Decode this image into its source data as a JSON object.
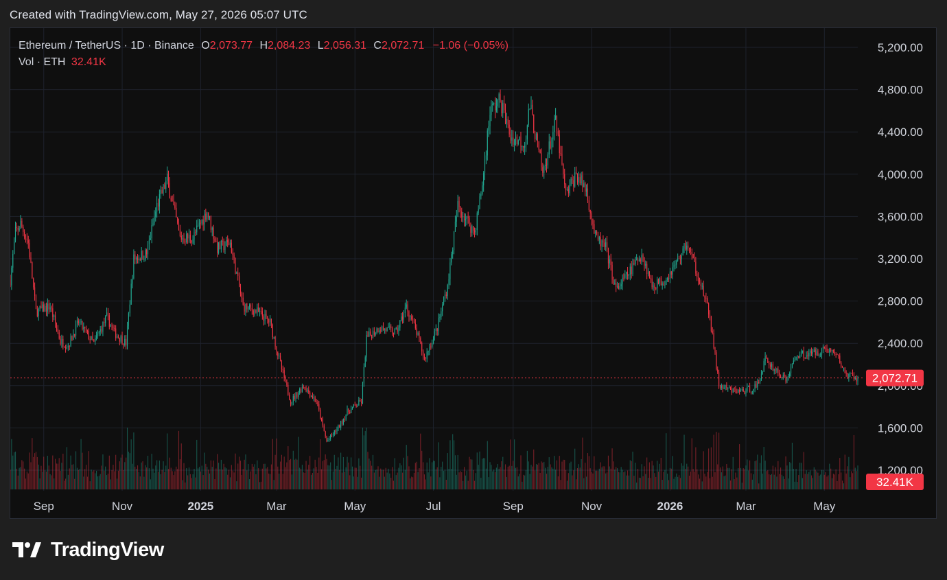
{
  "header": {
    "created_text": "Created with TradingView.com, May 27, 2026 05:07 UTC"
  },
  "legend": {
    "symbol": "Ethereum / TetherUS · 1D · Binance",
    "o_label": "O",
    "o_value": "2,073.77",
    "h_label": "H",
    "h_value": "2,084.23",
    "l_label": "L",
    "l_value": "2,056.31",
    "c_label": "C",
    "c_value": "2,072.71",
    "change": "−1.06 (−0.05%)",
    "vol_label": "Vol · ETH",
    "vol_value": "32.41K"
  },
  "colors": {
    "up": "#22ab94",
    "down": "#f23645",
    "grid": "#1e222d",
    "axis_text": "#d1d4dc"
  },
  "footer": {
    "logo_text": "TradingView",
    "logo_icon": "tradingview-logo-icon"
  },
  "chart_data": {
    "type": "candlestick",
    "interval": "1D",
    "price_axis": {
      "ticks": [
        "5,200.00",
        "4,800.00",
        "4,400.00",
        "4,000.00",
        "3,600.00",
        "3,200.00",
        "2,800.00",
        "2,400.00",
        "2,000.00",
        "1,600.00",
        "1,200.00"
      ],
      "tick_values": [
        5200,
        4800,
        4400,
        4000,
        3600,
        3200,
        2800,
        2400,
        2000,
        1600,
        1200
      ],
      "range": [
        1200,
        5200
      ]
    },
    "time_axis": {
      "range": [
        "2024-08-06",
        "2026-06-12"
      ],
      "ticks": [
        {
          "label": "Sep",
          "date": "2024-09-01",
          "bold": false
        },
        {
          "label": "Nov",
          "date": "2024-11-01",
          "bold": false
        },
        {
          "label": "2025",
          "date": "2025-01-01",
          "bold": true
        },
        {
          "label": "Mar",
          "date": "2025-03-01",
          "bold": false
        },
        {
          "label": "May",
          "date": "2025-05-01",
          "bold": false
        },
        {
          "label": "Jul",
          "date": "2025-07-01",
          "bold": false
        },
        {
          "label": "Sep",
          "date": "2025-09-01",
          "bold": false
        },
        {
          "label": "Nov",
          "date": "2025-11-01",
          "bold": false
        },
        {
          "label": "2026",
          "date": "2026-01-01",
          "bold": true
        },
        {
          "label": "Mar",
          "date": "2026-03-01",
          "bold": false
        },
        {
          "label": "May",
          "date": "2026-05-01",
          "bold": false
        }
      ]
    },
    "series": [
      {
        "name": "Ethereum / TetherUS",
        "kind": "close",
        "points": [
          [
            "2024-08-06",
            3000
          ],
          [
            "2024-08-10",
            3450
          ],
          [
            "2024-08-14",
            3530
          ],
          [
            "2024-08-20",
            3350
          ],
          [
            "2024-08-26",
            2700
          ],
          [
            "2024-09-06",
            2750
          ],
          [
            "2024-09-14",
            2420
          ],
          [
            "2024-09-20",
            2380
          ],
          [
            "2024-09-28",
            2600
          ],
          [
            "2024-10-10",
            2400
          ],
          [
            "2024-10-20",
            2650
          ],
          [
            "2024-10-26",
            2500
          ],
          [
            "2024-11-04",
            2400
          ],
          [
            "2024-11-10",
            3200
          ],
          [
            "2024-11-20",
            3250
          ],
          [
            "2024-11-28",
            3700
          ],
          [
            "2024-12-06",
            3950
          ],
          [
            "2024-12-16",
            3400
          ],
          [
            "2024-12-26",
            3400
          ],
          [
            "2025-01-06",
            3650
          ],
          [
            "2025-01-14",
            3300
          ],
          [
            "2025-01-24",
            3350
          ],
          [
            "2025-02-03",
            2750
          ],
          [
            "2025-02-14",
            2700
          ],
          [
            "2025-02-24",
            2600
          ],
          [
            "2025-03-04",
            2200
          ],
          [
            "2025-03-12",
            1850
          ],
          [
            "2025-03-22",
            2000
          ],
          [
            "2025-04-01",
            1850
          ],
          [
            "2025-04-09",
            1470
          ],
          [
            "2025-04-18",
            1600
          ],
          [
            "2025-04-25",
            1750
          ],
          [
            "2025-05-06",
            1850
          ],
          [
            "2025-05-10",
            2450
          ],
          [
            "2025-05-20",
            2550
          ],
          [
            "2025-06-02",
            2500
          ],
          [
            "2025-06-10",
            2750
          ],
          [
            "2025-06-18",
            2500
          ],
          [
            "2025-06-24",
            2250
          ],
          [
            "2025-07-04",
            2550
          ],
          [
            "2025-07-12",
            2950
          ],
          [
            "2025-07-20",
            3700
          ],
          [
            "2025-08-02",
            3450
          ],
          [
            "2025-08-08",
            3900
          ],
          [
            "2025-08-14",
            4600
          ],
          [
            "2025-08-22",
            4700
          ],
          [
            "2025-08-30",
            4350
          ],
          [
            "2025-09-10",
            4300
          ],
          [
            "2025-09-14",
            4650
          ],
          [
            "2025-09-24",
            4000
          ],
          [
            "2025-10-04",
            4500
          ],
          [
            "2025-10-12",
            3800
          ],
          [
            "2025-10-20",
            4000
          ],
          [
            "2025-10-28",
            3850
          ],
          [
            "2025-11-04",
            3400
          ],
          [
            "2025-11-12",
            3300
          ],
          [
            "2025-11-20",
            2900
          ],
          [
            "2025-12-02",
            3100
          ],
          [
            "2025-12-10",
            3250
          ],
          [
            "2025-12-18",
            2950
          ],
          [
            "2025-12-28",
            3000
          ],
          [
            "2026-01-08",
            3200
          ],
          [
            "2026-01-14",
            3350
          ],
          [
            "2026-01-24",
            3000
          ],
          [
            "2026-02-01",
            2650
          ],
          [
            "2026-02-08",
            2000
          ],
          [
            "2026-02-18",
            1950
          ],
          [
            "2026-03-01",
            1950
          ],
          [
            "2026-03-10",
            2000
          ],
          [
            "2026-03-16",
            2250
          ],
          [
            "2026-04-01",
            2050
          ],
          [
            "2026-04-10",
            2300
          ],
          [
            "2026-04-20",
            2300
          ],
          [
            "2026-05-02",
            2350
          ],
          [
            "2026-05-10",
            2300
          ],
          [
            "2026-05-18",
            2100
          ],
          [
            "2026-05-27",
            2072.71
          ]
        ]
      }
    ],
    "volume": {
      "label": "Vol · ETH",
      "last": "32.41K"
    },
    "last_price": {
      "value": 2072.71,
      "label": "2,072.71"
    }
  }
}
